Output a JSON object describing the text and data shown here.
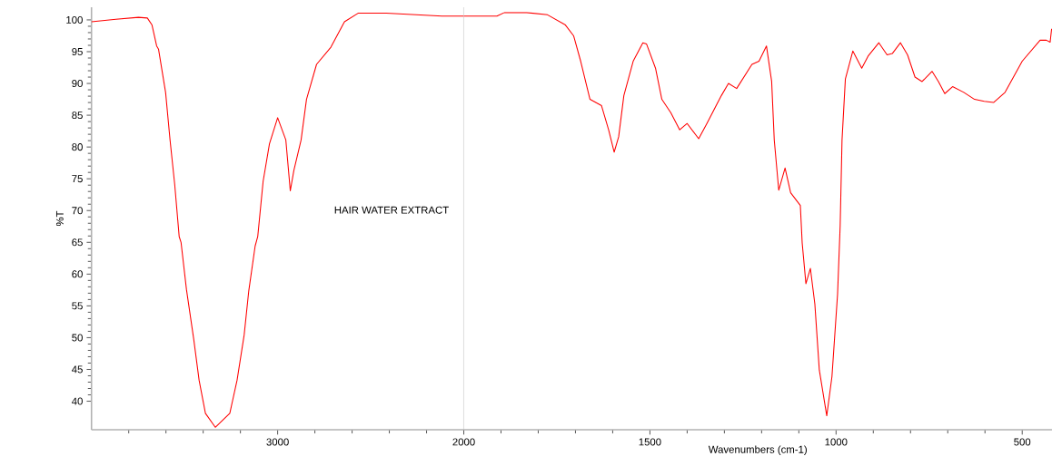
{
  "chart_data": [
    {
      "type": "line",
      "ylabel": "%T",
      "annotations": [
        "HAIR WATER EXTRACT"
      ],
      "xlim": [
        4000,
        2000
      ],
      "ylim": [
        35.5,
        102
      ],
      "xticks": [
        3000,
        2000,
        {
          "value": 3800,
          "label": null
        },
        {
          "value": 3600,
          "label": null
        },
        {
          "value": 3400,
          "label": null
        },
        {
          "value": 3200,
          "label": null
        },
        {
          "value": 2800,
          "label": null
        },
        {
          "value": 2600,
          "label": null
        },
        {
          "value": 2400,
          "label": null
        },
        {
          "value": 2200,
          "label": null
        }
      ],
      "yticks": [
        40,
        45,
        50,
        55,
        60,
        65,
        70,
        75,
        80,
        85,
        90,
        95,
        100
      ],
      "ref_lines": [
        {
          "axis": "x",
          "value": 2000,
          "color": "#c0c0c0"
        }
      ],
      "marker": "none",
      "line_style": "solid",
      "series": [
        {
          "color": "#ff0000",
          "x": [
            4000,
            3869,
            3748,
            3700,
            3675,
            3650,
            3640,
            3602,
            3578,
            3553,
            3529,
            3519,
            3490,
            3451,
            3422,
            3388,
            3335,
            3257,
            3218,
            3180,
            3155,
            3121,
            3107,
            3078,
            3044,
            3000,
            2956,
            2932,
            2913,
            2874,
            2845,
            2791,
            2714,
            2641,
            2568,
            2417,
            2117,
            2000
          ],
          "values": [
            99.7,
            100.1,
            100.4,
            100.3,
            99.2,
            95.9,
            95.4,
            88.6,
            81.1,
            74.1,
            65.9,
            65.0,
            57.6,
            49.8,
            43.3,
            38.1,
            35.9,
            38.1,
            43.3,
            50.4,
            57.4,
            64.4,
            65.9,
            74.6,
            80.5,
            84.6,
            81.1,
            73.1,
            76.3,
            81.1,
            87.5,
            93.0,
            95.7,
            99.7,
            101.05,
            101.05,
            100.6,
            100.6
          ]
        }
      ]
    },
    {
      "type": "line",
      "xlabel": "Wavenumbers (cm-1)",
      "xlim": [
        2000,
        420
      ],
      "ylim": [
        35.5,
        102
      ],
      "tick_labels": "x",
      "xticks": [
        1500,
        1000,
        500,
        {
          "value": 1900,
          "label": null
        },
        {
          "value": 1800,
          "label": null
        },
        {
          "value": 1700,
          "label": null
        },
        {
          "value": 1600,
          "label": null
        },
        {
          "value": 1400,
          "label": null
        },
        {
          "value": 1300,
          "label": null
        },
        {
          "value": 1200,
          "label": null
        },
        {
          "value": 1100,
          "label": null
        },
        {
          "value": 900,
          "label": null
        },
        {
          "value": 800,
          "label": null
        },
        {
          "value": 700,
          "label": null
        },
        {
          "value": 600,
          "label": null
        }
      ],
      "marker": "none",
      "line_style": "solid",
      "series": [
        {
          "color": "#ff0000",
          "x": [
            2000,
            1911,
            1891,
            1831,
            1775,
            1727,
            1705,
            1686,
            1661,
            1630,
            1611,
            1596,
            1584,
            1570,
            1545,
            1519,
            1509,
            1485,
            1468,
            1444,
            1420,
            1400,
            1369,
            1347,
            1308,
            1289,
            1267,
            1226,
            1207,
            1187,
            1173,
            1166,
            1154,
            1137,
            1122,
            1096,
            1091,
            1081,
            1069,
            1057,
            1045,
            1025,
            1011,
            996,
            989,
            984,
            975,
            955,
            931,
            914,
            885,
            863,
            849,
            827,
            808,
            788,
            769,
            742,
            725,
            708,
            687,
            657,
            628,
            602,
            577,
            546,
            500,
            452,
            435,
            425,
            421
          ],
          "values": [
            100.6,
            100.6,
            101.15,
            101.15,
            100.8,
            99.2,
            97.5,
            93.5,
            87.5,
            86.5,
            82.7,
            79.2,
            81.6,
            88.1,
            93.5,
            96.4,
            96.2,
            92.4,
            87.5,
            85.4,
            82.7,
            83.7,
            81.3,
            83.7,
            88.1,
            90.0,
            89.2,
            93.0,
            93.5,
            95.9,
            90.3,
            81.1,
            73.2,
            76.7,
            72.8,
            70.8,
            64.9,
            58.5,
            60.9,
            55.3,
            44.9,
            37.7,
            43.9,
            56.8,
            67.6,
            81.1,
            90.7,
            95.1,
            92.4,
            94.3,
            96.4,
            94.5,
            94.7,
            96.4,
            94.5,
            91.0,
            90.3,
            91.9,
            90.3,
            88.4,
            89.5,
            88.6,
            87.5,
            87.2,
            87.0,
            88.6,
            93.5,
            96.8,
            96.8,
            96.5,
            98.6
          ]
        }
      ]
    }
  ]
}
